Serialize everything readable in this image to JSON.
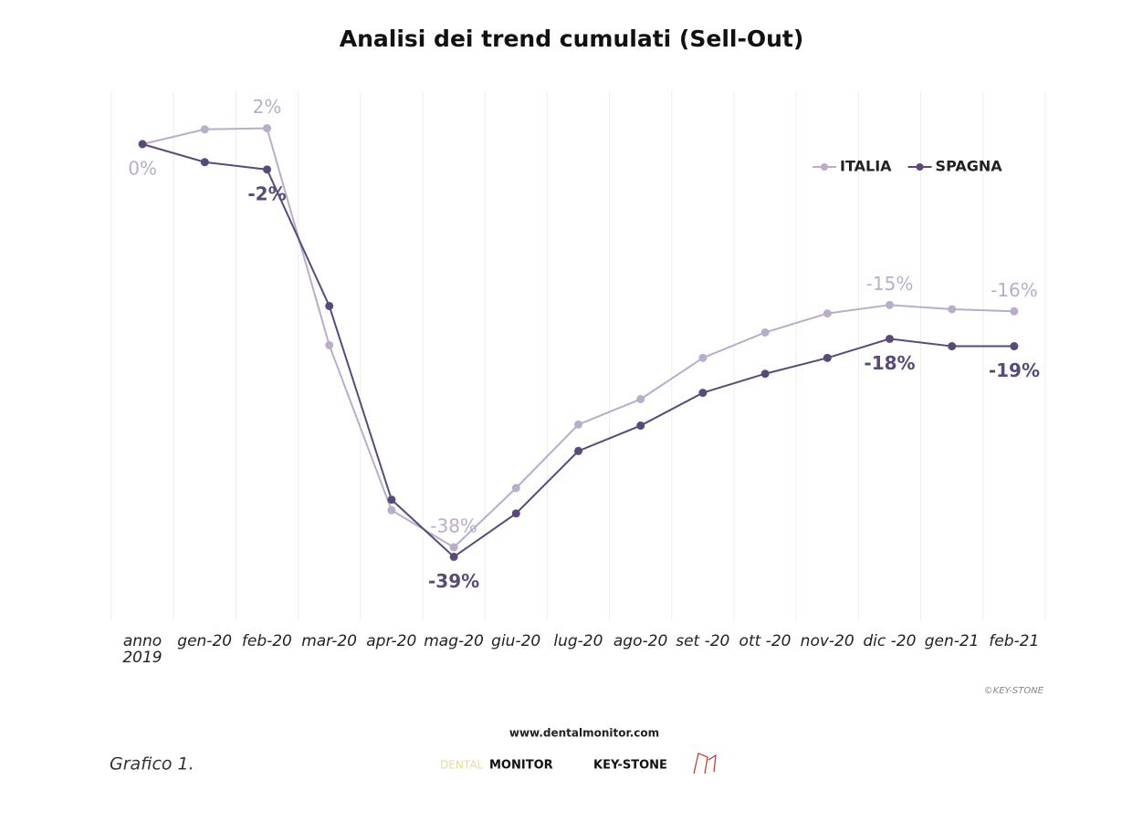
{
  "chart_data": {
    "type": "line",
    "title": "Analisi dei trend cumulati (Sell-Out)",
    "categories": [
      "anno\n2019",
      "gen-20",
      "feb-20",
      "mar-20",
      "apr-20",
      "mag-20",
      "giu-20",
      "lug-20",
      "ago-20",
      "set -20",
      "ott -20",
      "nov-20",
      "dic -20",
      "gen-21",
      "feb-21"
    ],
    "series": [
      {
        "name": "ITALIA",
        "color": "#b9adc9",
        "values": [
          0,
          1.4,
          1.5,
          -19.0,
          -34.6,
          -38.1,
          -32.5,
          -26.5,
          -24.1,
          -20.2,
          -17.8,
          -16.0,
          -15.2,
          -15.6,
          -15.8
        ],
        "value_labels": [
          "0%",
          null,
          "2%",
          null,
          null,
          "-38%",
          null,
          null,
          null,
          null,
          null,
          null,
          "-15%",
          null,
          "-16%"
        ]
      },
      {
        "name": "SPAGNA",
        "color": "#5a4a78",
        "values": [
          0,
          -1.7,
          -2.4,
          -15.3,
          -33.6,
          -39.0,
          -34.9,
          -29.0,
          -26.6,
          -23.5,
          -21.7,
          -20.2,
          -18.4,
          -19.1,
          -19.1
        ],
        "value_labels": [
          null,
          null,
          "-2%",
          null,
          null,
          "-39%",
          null,
          null,
          null,
          null,
          null,
          null,
          "-18%",
          null,
          "-19%"
        ]
      }
    ],
    "ylim": [
      -45,
      5
    ],
    "grid": true,
    "legend": "top-right"
  },
  "credit": "©KEY-STONE",
  "website": "www.dentalmonitor.com",
  "caption": "Grafico 1.",
  "logos": {
    "dental": "DENTAL",
    "monitor": "MONITOR",
    "keystone": "KEY-STONE"
  }
}
